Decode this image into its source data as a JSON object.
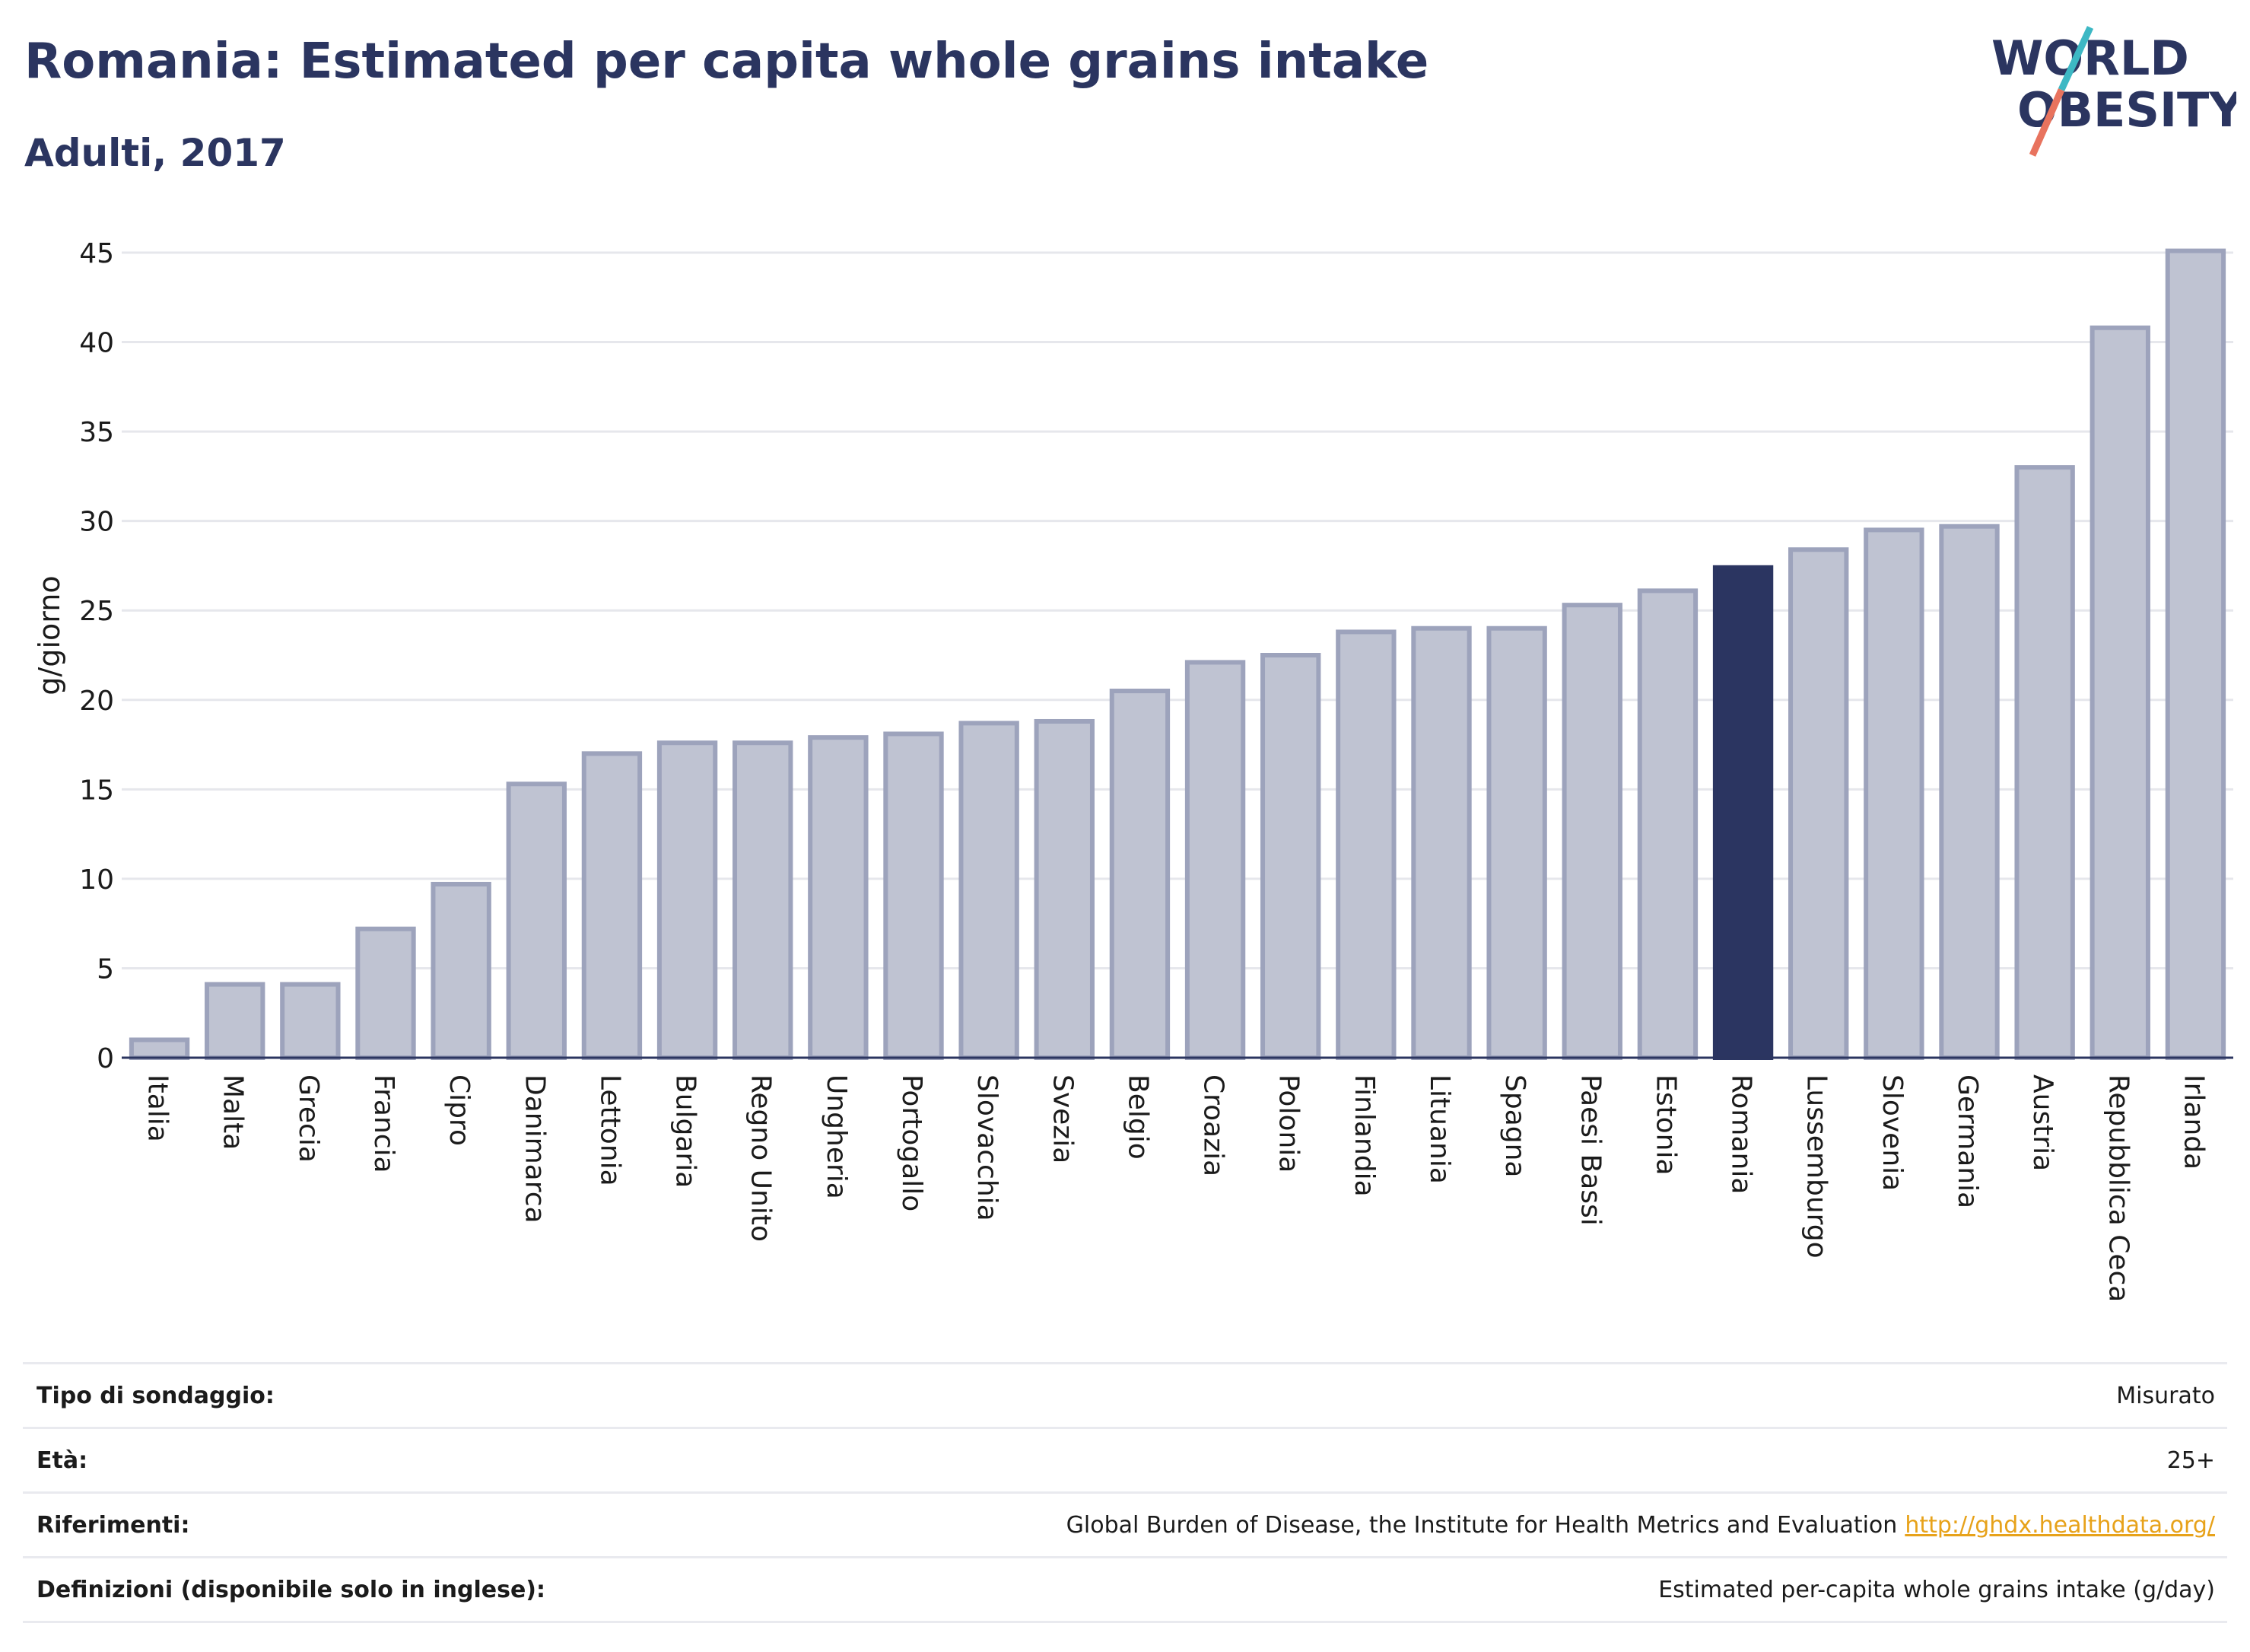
{
  "header": {
    "title": "Romania: Estimated per capita whole grains intake",
    "subtitle": "Adulti, 2017"
  },
  "logo": {
    "line1": "WORLD",
    "line2": "OBESITY"
  },
  "colors": {
    "highlight": "#2b3561",
    "bar_fill": "#bfc3d2",
    "bar_stroke": "#9da3bc",
    "text": "#2b3560",
    "accent_teal": "#3db8c4",
    "accent_coral": "#e8735e",
    "link": "#e7a21a"
  },
  "chart_data": {
    "type": "bar",
    "title": "Romania: Estimated per capita whole grains intake",
    "subtitle": "Adulti, 2017",
    "xlabel": "",
    "ylabel": "g/giorno",
    "ylim": [
      0,
      45
    ],
    "yticks": [
      0,
      5,
      10,
      15,
      20,
      25,
      30,
      35,
      40,
      45
    ],
    "grid": true,
    "highlight": "Romania",
    "categories": [
      "Italia",
      "Malta",
      "Grecia",
      "Francia",
      "Cipro",
      "Danimarca",
      "Lettonia",
      "Bulgaria",
      "Regno Unito",
      "Ungheria",
      "Portogallo",
      "Slovacchia",
      "Svezia",
      "Belgio",
      "Croazia",
      "Polonia",
      "Finlandia",
      "Lituania",
      "Spagna",
      "Paesi Bassi",
      "Estonia",
      "Romania",
      "Lussemburgo",
      "Slovenia",
      "Germania",
      "Austria",
      "Repubblica Ceca",
      "Irlanda"
    ],
    "values": [
      1.0,
      4.1,
      4.1,
      7.2,
      9.7,
      15.3,
      17.0,
      17.6,
      17.6,
      17.9,
      18.1,
      18.7,
      18.8,
      20.5,
      22.1,
      22.5,
      23.8,
      24.0,
      24.0,
      25.3,
      26.1,
      27.4,
      28.4,
      29.5,
      29.7,
      33.0,
      40.8,
      45.1
    ]
  },
  "meta": [
    {
      "label": "Tipo di sondaggio:",
      "value": "Misurato"
    },
    {
      "label": "Età:",
      "value": "25+"
    },
    {
      "label": "Riferimenti:",
      "value": "Global Burden of Disease, the Institute for Health Metrics and Evaluation",
      "link": "http://ghdx.healthdata.org/"
    },
    {
      "label": "Definizioni (disponibile solo in inglese):",
      "value": "Estimated per-capita whole grains intake (g/day)"
    }
  ]
}
